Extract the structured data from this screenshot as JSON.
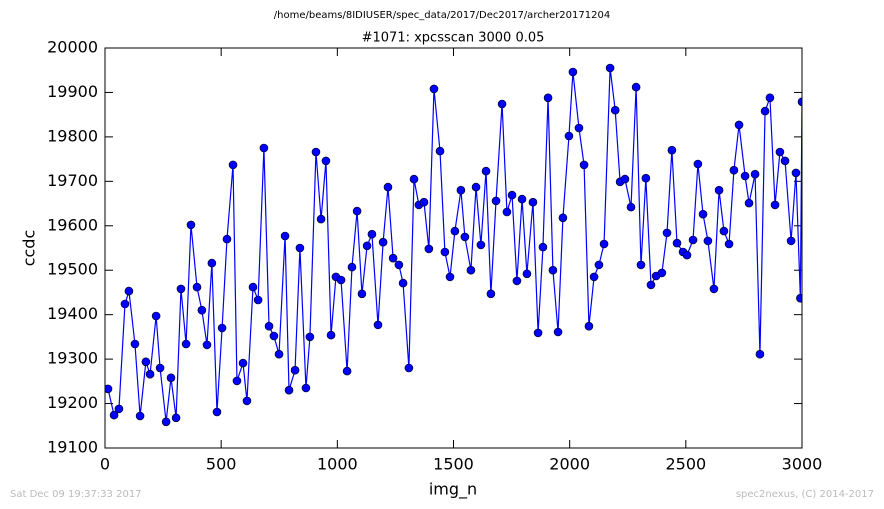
{
  "chart_data": {
    "type": "line",
    "suptitle": "/home/beams/8IDIUSER/spec_data/2017/Dec2017/archer20171204",
    "title": "#1071: xpcsscan 3000 0.05",
    "xlabel": "img_n",
    "ylabel": "ccdc",
    "timestamp": "Sat Dec 09 19:37:33 2017",
    "credit": "spec2nexus, (C) 2014-2017",
    "xlim": [
      0,
      3000
    ],
    "xticks": [
      0,
      500,
      1000,
      1500,
      2000,
      2500,
      3000
    ],
    "ylim": [
      19100,
      20000
    ],
    "yticks": [
      19100,
      19200,
      19300,
      19400,
      19500,
      19600,
      19700,
      19800,
      19900,
      20000
    ],
    "grid": false,
    "series": [
      {
        "name": "ccdc",
        "color": "#0000ff",
        "x": [
          13,
          39,
          60,
          86,
          103,
          129,
          151,
          176,
          194,
          220,
          237,
          263,
          284,
          306,
          327,
          349,
          370,
          396,
          417,
          439,
          460,
          482,
          504,
          525,
          551,
          568,
          594,
          611,
          637,
          659,
          684,
          706,
          727,
          749,
          775,
          792,
          818,
          839,
          865,
          882,
          908,
          930,
          951,
          973,
          994,
          1016,
          1042,
          1063,
          1085,
          1106,
          1128,
          1149,
          1175,
          1197,
          1218,
          1240,
          1265,
          1283,
          1308,
          1330,
          1351,
          1373,
          1394,
          1416,
          1442,
          1463,
          1485,
          1506,
          1532,
          1549,
          1575,
          1597,
          1618,
          1640,
          1661,
          1683,
          1709,
          1730,
          1752,
          1773,
          1795,
          1816,
          1842,
          1864,
          1885,
          1907,
          1928,
          1950,
          1971,
          1997,
          2014,
          2040,
          2062,
          2083,
          2105,
          2126,
          2148,
          2174,
          2196,
          2217,
          2238,
          2264,
          2286,
          2307,
          2328,
          2350,
          2372,
          2397,
          2419,
          2440,
          2462,
          2488,
          2505,
          2531,
          2552,
          2574,
          2595,
          2621,
          2643,
          2664,
          2686,
          2707,
          2729,
          2755,
          2772,
          2798,
          2819,
          2841,
          2862,
          2884,
          2905,
          2927,
          2953,
          2974,
          2993,
          3000
        ],
        "values": [
          19233,
          19174,
          19188,
          19424,
          19453,
          19334,
          19172,
          19294,
          19266,
          19397,
          19280,
          19159,
          19258,
          19168,
          19458,
          19334,
          19602,
          19462,
          19410,
          19332,
          19516,
          19181,
          19370,
          19570,
          19737,
          19251,
          19291,
          19206,
          19462,
          19433,
          19775,
          19374,
          19352,
          19311,
          19577,
          19230,
          19275,
          19550,
          19235,
          19350,
          19766,
          19615,
          19746,
          19354,
          19485,
          19478,
          19273,
          19507,
          19633,
          19447,
          19555,
          19581,
          19377,
          19563,
          19687,
          19527,
          19512,
          19471,
          19280,
          19705,
          19647,
          19653,
          19548,
          19908,
          19768,
          19541,
          19485,
          19588,
          19680,
          19575,
          19500,
          19687,
          19557,
          19723,
          19447,
          19656,
          19874,
          19631,
          19669,
          19476,
          19660,
          19492,
          19653,
          19359,
          19552,
          19888,
          19500,
          19361,
          19618,
          19802,
          19946,
          19820,
          19737,
          19374,
          19485,
          19512,
          19559,
          19955,
          19860,
          19699,
          19705,
          19642,
          19912,
          19512,
          19707,
          19467,
          19487,
          19494,
          19584,
          19770,
          19561,
          19541,
          19534,
          19568,
          19739,
          19626,
          19566,
          19458,
          19680,
          19588,
          19559,
          19725,
          19827,
          19712,
          19651,
          19716,
          19311,
          19858,
          19888,
          19647,
          19766,
          19746,
          19566,
          19719,
          19437,
          19879
        ]
      }
    ]
  }
}
